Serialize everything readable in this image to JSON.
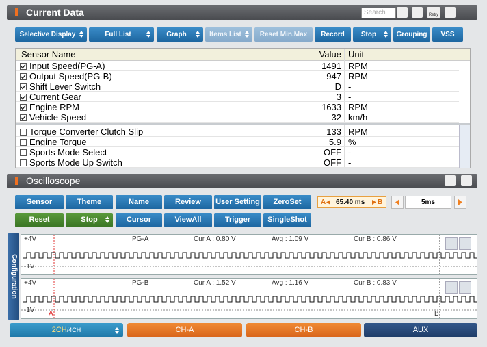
{
  "current_data": {
    "title": "Current Data",
    "search_placeholder": "Search",
    "retry_icon": "Retry",
    "toolbar": [
      "Selective Display",
      "Full List",
      "Graph",
      "Items List",
      "Reset Min.Max",
      "Record",
      "Stop",
      "Grouping",
      "VSS"
    ],
    "columns": [
      "Sensor Name",
      "Value",
      "Unit"
    ],
    "rows": [
      {
        "name": "Input Speed(PG-A)",
        "value": 1491,
        "unit": "RPM",
        "checked": true
      },
      {
        "name": "Output Speed(PG-B)",
        "value": 947,
        "unit": "RPM",
        "checked": true
      },
      {
        "name": "Shift Lever Switch",
        "value": "D",
        "unit": "-",
        "checked": true
      },
      {
        "name": "Current Gear",
        "value": 3,
        "unit": "-",
        "checked": true
      },
      {
        "name": "Engine RPM",
        "value": 1633,
        "unit": "RPM",
        "checked": true
      },
      {
        "name": "Vehicle Speed",
        "value": 32,
        "unit": "km/h",
        "checked": true
      },
      {
        "name": "Torque Converter Clutch Slip",
        "value": 133,
        "unit": "RPM",
        "checked": false
      },
      {
        "name": "Engine Torque",
        "value": 5.9,
        "unit": "%",
        "checked": false
      },
      {
        "name": "Sports Mode Select",
        "value": "OFF",
        "unit": "-",
        "checked": false
      },
      {
        "name": "Sports Mode Up Switch",
        "value": "OFF",
        "unit": "-",
        "checked": false
      }
    ]
  },
  "oscilloscope": {
    "title": "Oscilloscope",
    "buttons_row1": [
      "Sensor",
      "Theme",
      "Name",
      "Review",
      "User Setting",
      "ZeroSet"
    ],
    "buttons_row2": [
      "Reset",
      "Stop",
      "Cursor",
      "ViewAll",
      "Trigger",
      "SingleShot"
    ],
    "cursor": {
      "a_label": "A",
      "time": "65.40 ms",
      "b_label": "B"
    },
    "time_div": "5ms",
    "side_tab": "Configuration",
    "channels": [
      {
        "max": "+4V",
        "name": "PG-A",
        "cur_a": "Cur A : 0.80 V",
        "avg": "Avg : 1.09 V",
        "cur_b": "Cur B : 0.86 V",
        "min": "-1V"
      },
      {
        "max": "+4V",
        "name": "PG-B",
        "cur_a": "Cur A : 1.52 V",
        "avg": "Avg : 1.16 V",
        "cur_b": "Cur B : 0.83 V",
        "min": "-1V"
      }
    ],
    "cursor_marks": [
      "A",
      "B"
    ]
  },
  "tabs": {
    "channels": "2CH",
    "channels_alt": "/4CH",
    "items": [
      "CH-A",
      "CH-B",
      "AUX"
    ]
  }
}
